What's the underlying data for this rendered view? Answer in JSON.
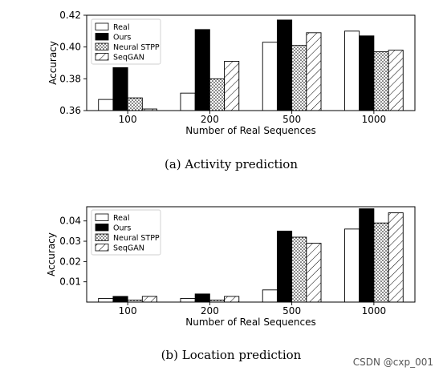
{
  "chart_data": [
    {
      "type": "bar",
      "caption": "(a)  Activity prediction",
      "categories": [
        "100",
        "200",
        "500",
        "1000"
      ],
      "series": [
        {
          "name": "Real",
          "values": [
            0.367,
            0.371,
            0.403,
            0.41
          ]
        },
        {
          "name": "Ours",
          "values": [
            0.387,
            0.411,
            0.417,
            0.407
          ]
        },
        {
          "name": "Neural STPP",
          "values": [
            0.368,
            0.38,
            0.401,
            0.397
          ]
        },
        {
          "name": "SeqGAN",
          "values": [
            0.361,
            0.391,
            0.409,
            0.398
          ]
        }
      ],
      "xlabel": "Number of Real Sequences",
      "ylabel": "Accuracy",
      "ylim": [
        0.36,
        0.42
      ],
      "yticks": [
        0.36,
        0.38,
        0.4,
        0.42
      ],
      "ytick_labels": [
        "0.36",
        "0.38",
        "0.40",
        "0.42"
      ],
      "legend_position": "upper-left",
      "grid": false
    },
    {
      "type": "bar",
      "caption": "(b)  Location prediction",
      "categories": [
        "100",
        "200",
        "500",
        "1000"
      ],
      "series": [
        {
          "name": "Real",
          "values": [
            0.0018,
            0.0018,
            0.006,
            0.036
          ]
        },
        {
          "name": "Ours",
          "values": [
            0.0028,
            0.004,
            0.035,
            0.046
          ]
        },
        {
          "name": "Neural STPP",
          "values": [
            0.001,
            0.001,
            0.032,
            0.039
          ]
        },
        {
          "name": "SeqGAN",
          "values": [
            0.0028,
            0.0028,
            0.029,
            0.044
          ]
        }
      ],
      "xlabel": "Number of Real Sequences",
      "ylabel": "Accuracy",
      "ylim": [
        0,
        0.047
      ],
      "yticks": [
        0.01,
        0.02,
        0.03,
        0.04
      ],
      "ytick_labels": [
        "0.01",
        "0.02",
        "0.03",
        "0.04"
      ],
      "legend_position": "upper-left",
      "grid": false
    }
  ],
  "series_styles": [
    {
      "fill": "#ffffff",
      "pattern": "none"
    },
    {
      "fill": "#000000",
      "pattern": "none"
    },
    {
      "fill": "#ffffff",
      "pattern": "dots"
    },
    {
      "fill": "#ffffff",
      "pattern": "hatch"
    }
  ],
  "watermark": "CSDN @cxp_001"
}
